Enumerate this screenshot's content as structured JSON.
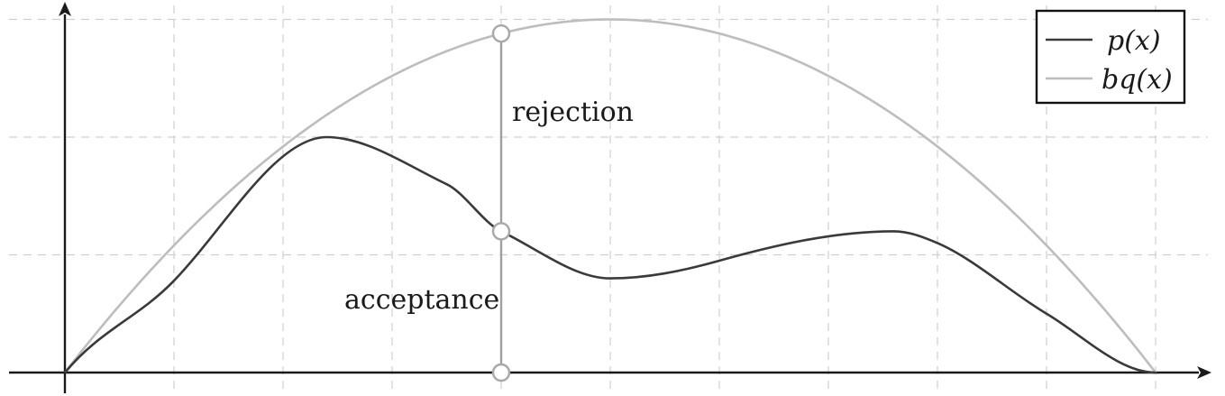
{
  "colors": {
    "p": "#3a3a3a",
    "bq": "#bdbdbd",
    "axis": "#1a1a1a",
    "grid": "#cfcfcf"
  },
  "annotations": {
    "rejection": "rejection",
    "acceptance": "acceptance"
  },
  "legend": {
    "p_label": "p(x)",
    "bq_label": "bq(x)"
  },
  "sample_x": 4
}
